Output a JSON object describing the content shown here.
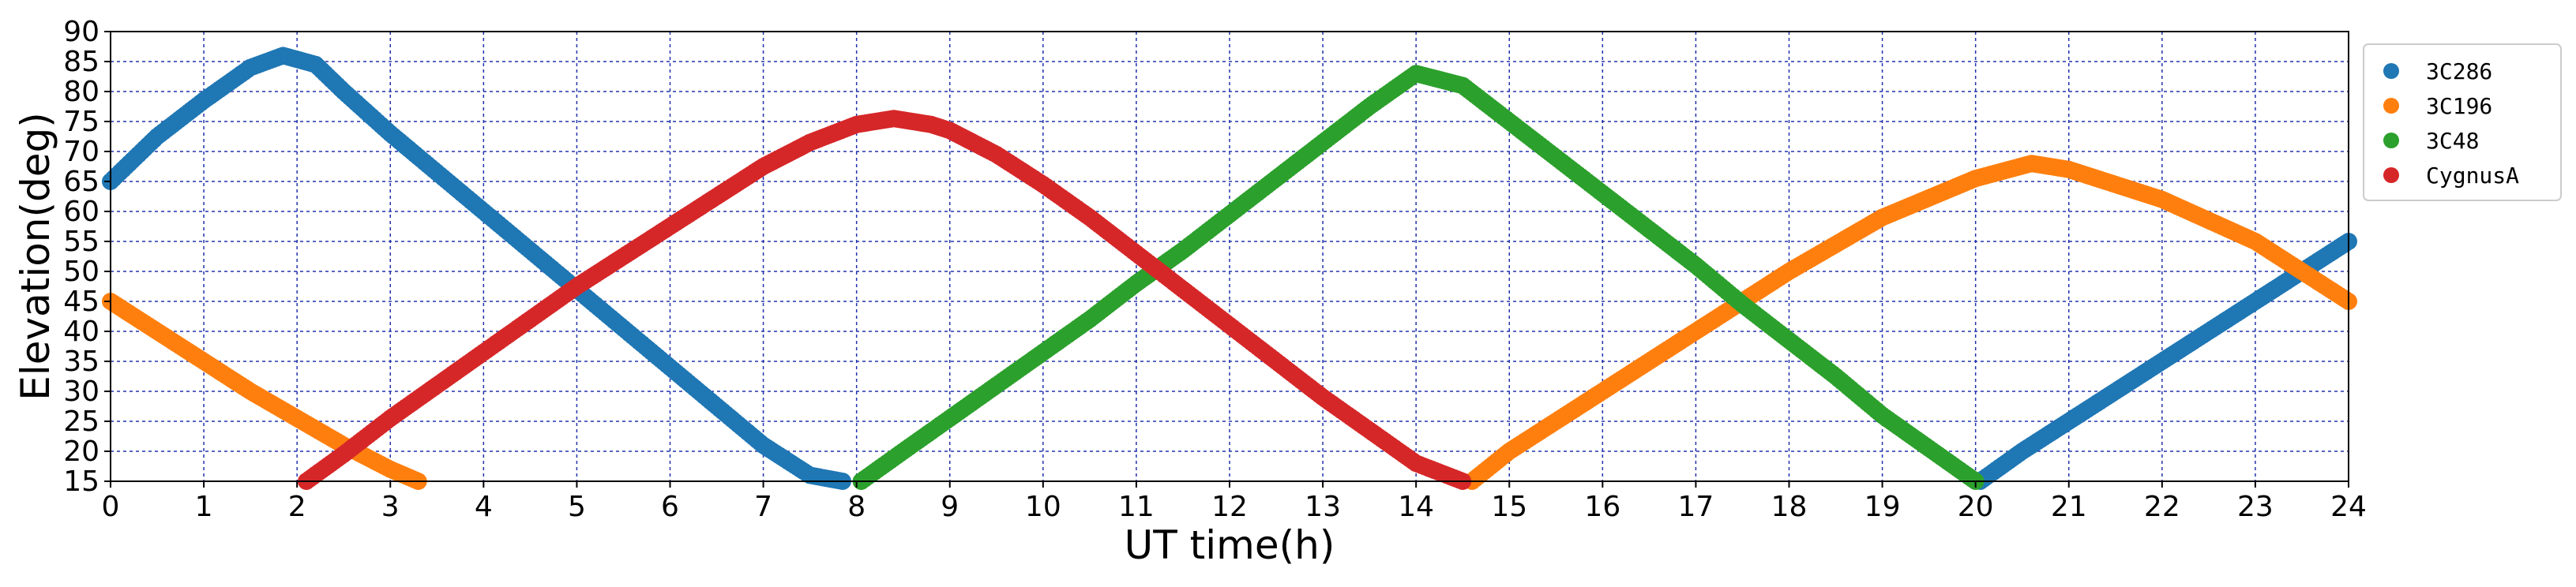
{
  "chart_data": {
    "type": "scatter",
    "xlabel": "UT time(h)",
    "ylabel": "Elevation(deg)",
    "xlim": [
      0,
      24
    ],
    "ylim": [
      15,
      90
    ],
    "xticks": [
      0,
      1,
      2,
      3,
      4,
      5,
      6,
      7,
      8,
      9,
      10,
      11,
      12,
      13,
      14,
      15,
      16,
      17,
      18,
      19,
      20,
      21,
      22,
      23,
      24
    ],
    "yticks": [
      15,
      20,
      25,
      30,
      35,
      40,
      45,
      50,
      55,
      60,
      65,
      70,
      75,
      80,
      85,
      90
    ],
    "grid": "on (dashed, blue)",
    "legend_position": "outside right, top",
    "series": [
      {
        "name": "3C286",
        "color": "#1f77b4",
        "x": [
          0,
          0.5,
          1.0,
          1.5,
          1.85,
          2.2,
          2.5,
          3.0,
          3.5,
          4.0,
          4.5,
          5.0,
          5.5,
          6.0,
          6.5,
          7.0,
          7.5,
          7.85,
          20.05,
          20.5,
          21.0,
          21.5,
          22.0,
          22.5,
          23.0,
          23.5,
          24.0
        ],
        "y": [
          65,
          72.5,
          78.5,
          84,
          86,
          84.5,
          80,
          73,
          66.5,
          60,
          53.5,
          47,
          40.5,
          34,
          27.5,
          21,
          16,
          15,
          15,
          20,
          25,
          30,
          35,
          40,
          45,
          50,
          55
        ]
      },
      {
        "name": "3C196",
        "color": "#ff7f0e",
        "x": [
          0,
          0.5,
          1.0,
          1.5,
          2.0,
          2.5,
          3.0,
          3.3,
          14.6,
          15.0,
          16.0,
          17.0,
          18.0,
          19.0,
          20.0,
          20.6,
          21.0,
          22.0,
          23.0,
          24.0
        ],
        "y": [
          45,
          40,
          35,
          30,
          25.5,
          21,
          17,
          15,
          15,
          20,
          30,
          40,
          50,
          59,
          65.5,
          68,
          67,
          62,
          55,
          45
        ]
      },
      {
        "name": "3C48",
        "color": "#2ca02c",
        "x": [
          8.05,
          8.5,
          9.0,
          9.5,
          10.0,
          10.5,
          11.0,
          11.5,
          12.0,
          12.5,
          13.0,
          13.5,
          14.0,
          14.5,
          15.0,
          15.5,
          16.0,
          16.5,
          17.0,
          17.5,
          18.0,
          18.5,
          19.0,
          19.5,
          20.0
        ],
        "y": [
          15,
          20,
          25.5,
          31,
          36.5,
          42,
          48,
          53.5,
          59.5,
          65.5,
          71.5,
          77.5,
          83,
          81,
          75,
          69,
          63,
          57,
          51,
          44.5,
          38.5,
          32.5,
          26,
          20.5,
          15
        ]
      },
      {
        "name": "CygnusA",
        "color": "#d62728",
        "x": [
          2.1,
          2.5,
          3.0,
          3.5,
          4.0,
          4.5,
          5.0,
          5.5,
          6.0,
          6.5,
          7.0,
          7.5,
          8.0,
          8.4,
          8.8,
          9.0,
          9.5,
          10.0,
          10.5,
          11.0,
          11.5,
          12.0,
          12.5,
          13.0,
          13.5,
          14.0,
          14.5
        ],
        "y": [
          15,
          19.5,
          25.5,
          31,
          36.5,
          42,
          47.5,
          52.5,
          57.5,
          62.5,
          67.5,
          71.5,
          74.5,
          75.5,
          74.5,
          73.5,
          69.5,
          64.5,
          59,
          53,
          47,
          41,
          35,
          29,
          23.5,
          18,
          15
        ]
      }
    ]
  }
}
